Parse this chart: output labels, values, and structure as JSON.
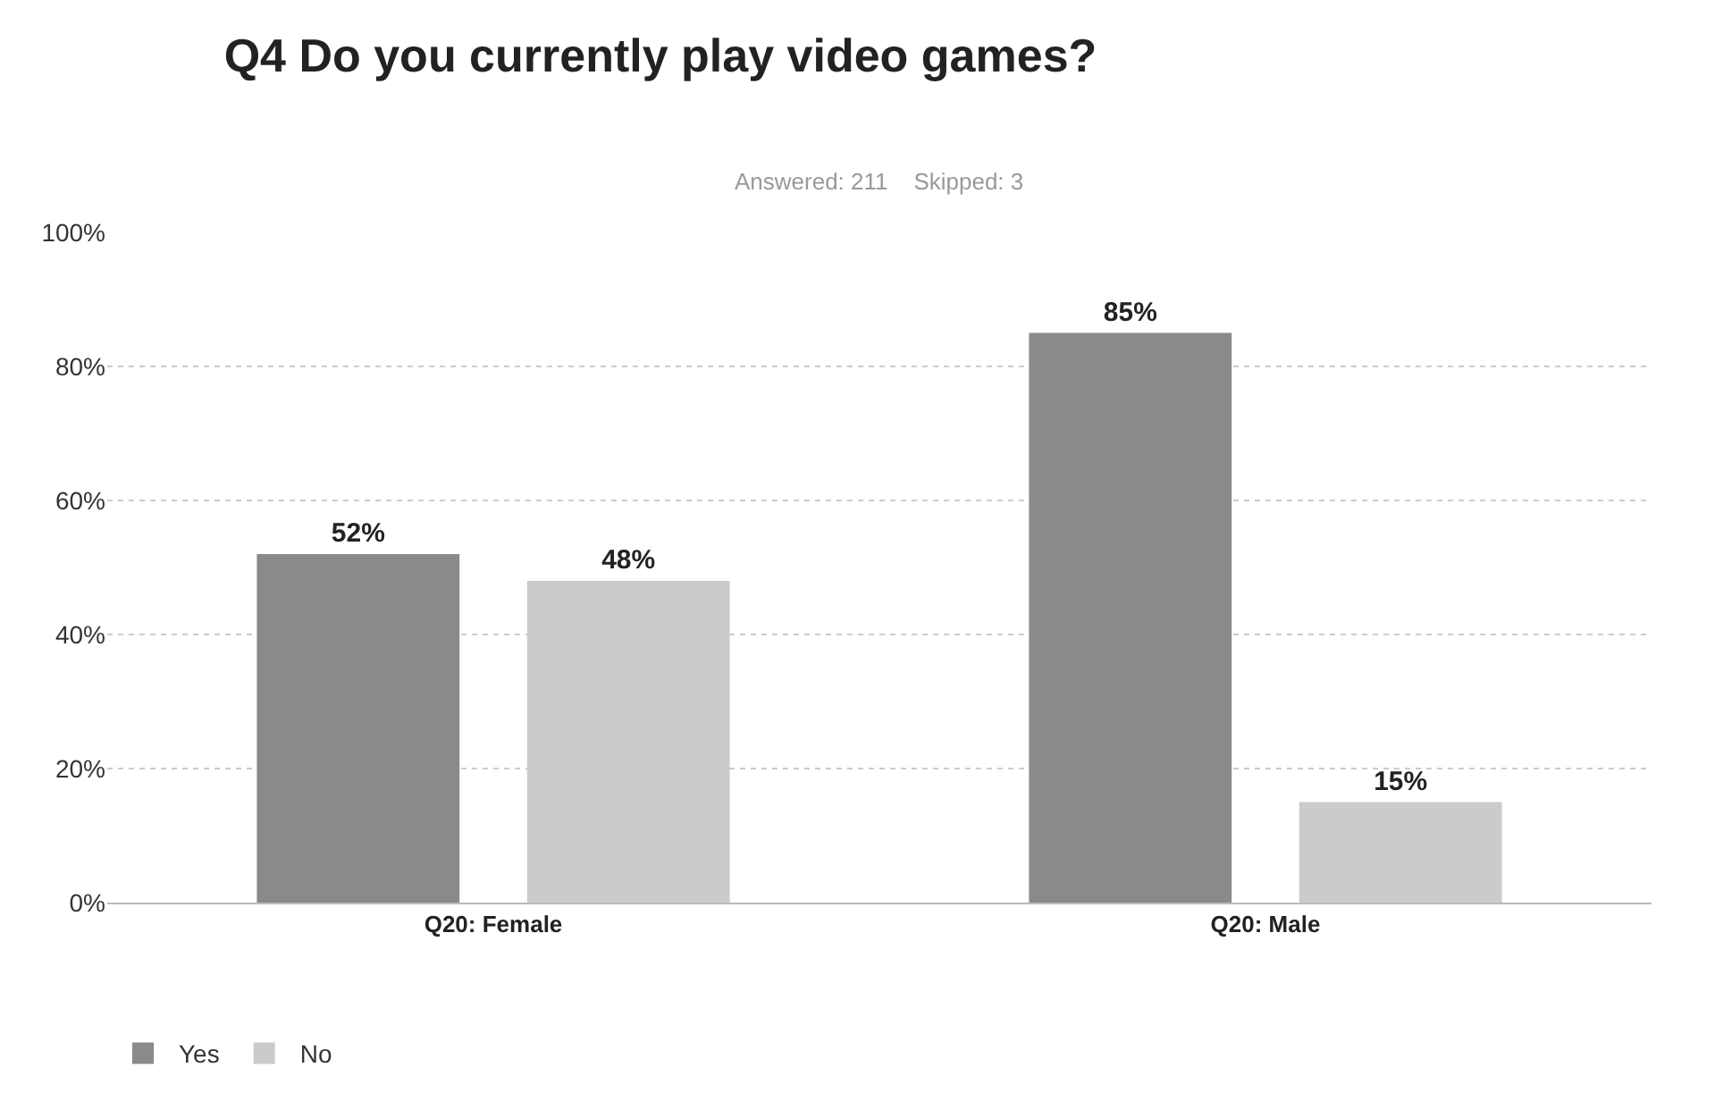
{
  "chart_data": {
    "type": "bar",
    "title": "Q4 Do you currently play video games?",
    "subtitle": "Answered: 211    Skipped: 3",
    "categories": [
      "Q20: Female",
      "Q20: Male"
    ],
    "series": [
      {
        "name": "Yes",
        "color": "#8a8a8a",
        "values": [
          52,
          85
        ],
        "value_labels": [
          "52%",
          "85%"
        ]
      },
      {
        "name": "No",
        "color": "#cbcbcb",
        "values": [
          48,
          15
        ],
        "value_labels": [
          "48%",
          "15%"
        ]
      }
    ],
    "ylim": [
      0,
      100
    ],
    "yticks": [
      {
        "value": 0,
        "label": "0%"
      },
      {
        "value": 20,
        "label": "20%"
      },
      {
        "value": 40,
        "label": "40%"
      },
      {
        "value": 60,
        "label": "60%"
      },
      {
        "value": 80,
        "label": "80%"
      },
      {
        "value": 100,
        "label": "100%"
      }
    ],
    "grid": "y",
    "legend": "bottom left"
  }
}
